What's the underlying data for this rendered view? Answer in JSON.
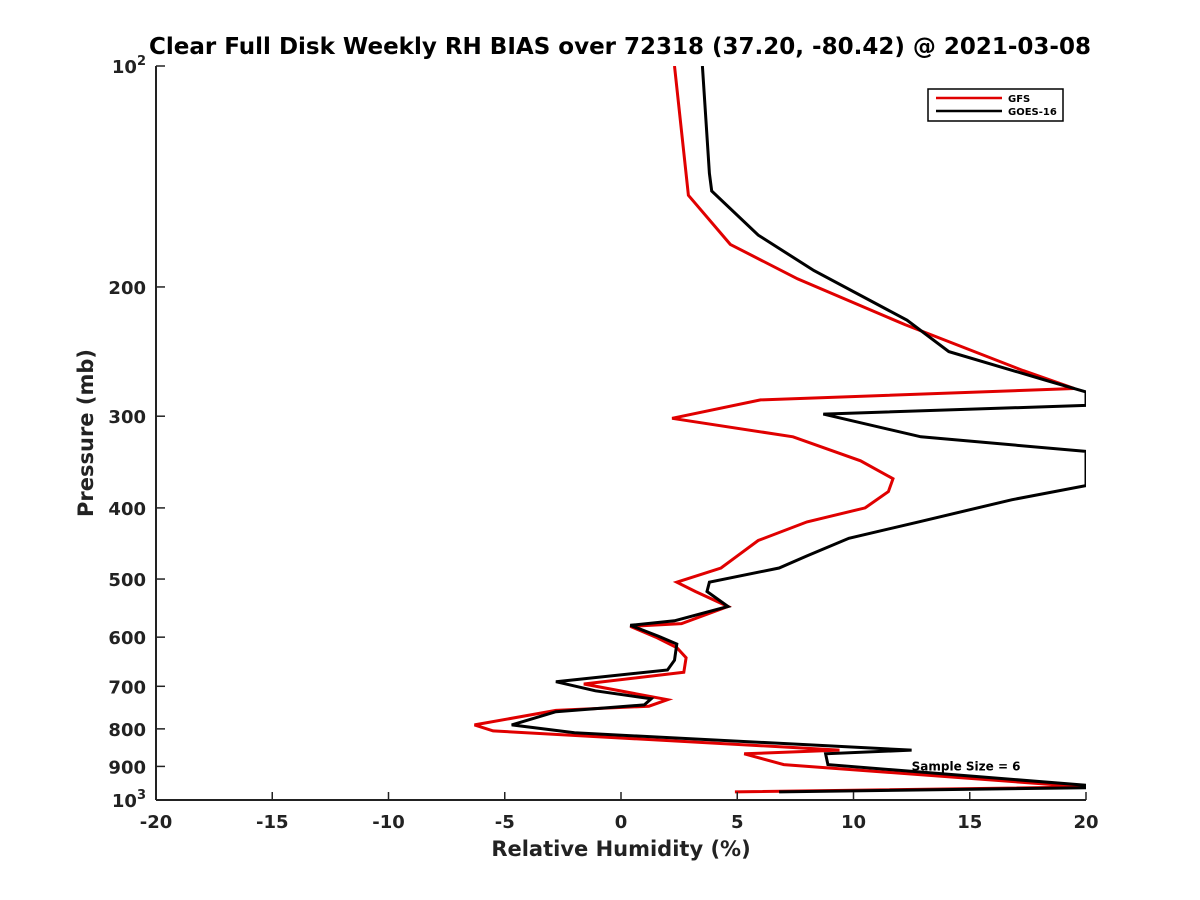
{
  "chart_data": {
    "type": "line",
    "title": "Clear Full Disk Weekly RH BIAS over 72318 (37.20, -80.42) @ 2021-03-08",
    "xlabel": "Relative Humidity (%)",
    "ylabel": "Pressure (mb)",
    "xlim": [
      -20,
      20
    ],
    "ylim": [
      100,
      1000
    ],
    "y_scale": "log",
    "y_reversed": true,
    "grid": false,
    "legend_position": "top-right",
    "x_ticks": [
      -20,
      -15,
      -10,
      -5,
      0,
      5,
      10,
      15,
      20
    ],
    "x_tick_labels": [
      "-20",
      "-15",
      "-10",
      "-5",
      "0",
      "5",
      "10",
      "15",
      "20"
    ],
    "y_ticks": [
      {
        "value": 100,
        "base": "10",
        "exp": "2"
      },
      {
        "value": 200,
        "label": "200"
      },
      {
        "value": 300,
        "label": "300"
      },
      {
        "value": 400,
        "label": "400"
      },
      {
        "value": 500,
        "label": "500"
      },
      {
        "value": 600,
        "label": "600"
      },
      {
        "value": 700,
        "label": "700"
      },
      {
        "value": 800,
        "label": "800"
      },
      {
        "value": 900,
        "label": "900"
      },
      {
        "value": 1000,
        "base": "10",
        "exp": "3"
      }
    ],
    "series": [
      {
        "name": "GFS",
        "color": "#e00000",
        "points": [
          [
            2.3,
            100
          ],
          [
            2.9,
            150
          ],
          [
            4.7,
            175
          ],
          [
            7.6,
            195
          ],
          [
            12.2,
            225
          ],
          [
            17.3,
            260
          ],
          [
            19.5,
            275
          ],
          [
            6.0,
            285
          ],
          [
            2.2,
            302
          ],
          [
            7.4,
            320
          ],
          [
            10.3,
            345
          ],
          [
            11.7,
            365
          ],
          [
            11.5,
            380
          ],
          [
            10.5,
            400
          ],
          [
            8.0,
            418
          ],
          [
            5.9,
            443
          ],
          [
            5.0,
            465
          ],
          [
            4.3,
            483
          ],
          [
            2.4,
            505
          ],
          [
            3.2,
            520
          ],
          [
            4.6,
            545
          ],
          [
            2.6,
            575
          ],
          [
            0.4,
            580
          ],
          [
            1.5,
            600
          ],
          [
            2.4,
            620
          ],
          [
            2.8,
            640
          ],
          [
            2.7,
            670
          ],
          [
            -1.6,
            695
          ],
          [
            2.0,
            730
          ],
          [
            1.2,
            745
          ],
          [
            -2.8,
            755
          ],
          [
            -6.3,
            790
          ],
          [
            -5.5,
            805
          ],
          [
            9.4,
            855
          ],
          [
            5.3,
            865
          ],
          [
            7.0,
            895
          ],
          [
            20.0,
            960
          ],
          [
            4.9,
            975
          ]
        ]
      },
      {
        "name": "GOES-16",
        "color": "#000000",
        "points": [
          [
            3.5,
            100
          ],
          [
            3.8,
            140
          ],
          [
            3.9,
            148
          ],
          [
            5.9,
            170
          ],
          [
            8.3,
            190
          ],
          [
            12.3,
            222
          ],
          [
            14.1,
            245
          ],
          [
            18.6,
            270
          ],
          [
            20.0,
            278
          ],
          [
            20.0,
            290
          ],
          [
            8.7,
            298
          ],
          [
            12.9,
            320
          ],
          [
            20.0,
            335
          ],
          [
            20.0,
            373
          ],
          [
            16.8,
            390
          ],
          [
            12.8,
            418
          ],
          [
            9.8,
            440
          ],
          [
            8.0,
            465
          ],
          [
            6.8,
            483
          ],
          [
            3.8,
            505
          ],
          [
            3.7,
            520
          ],
          [
            4.6,
            545
          ],
          [
            2.3,
            570
          ],
          [
            0.4,
            578
          ],
          [
            1.6,
            598
          ],
          [
            2.4,
            613
          ],
          [
            2.3,
            645
          ],
          [
            2.0,
            665
          ],
          [
            -2.8,
            690
          ],
          [
            -1.1,
            710
          ],
          [
            1.3,
            728
          ],
          [
            1.0,
            742
          ],
          [
            -2.8,
            758
          ],
          [
            -4.7,
            790
          ],
          [
            -2.0,
            810
          ],
          [
            12.5,
            855
          ],
          [
            8.8,
            865
          ],
          [
            8.9,
            895
          ],
          [
            20.0,
            955
          ],
          [
            20.0,
            962
          ],
          [
            6.8,
            975
          ]
        ]
      }
    ],
    "annotations": [
      {
        "text": "Sample Size = 6",
        "x": 12.5,
        "y": 900
      }
    ]
  }
}
